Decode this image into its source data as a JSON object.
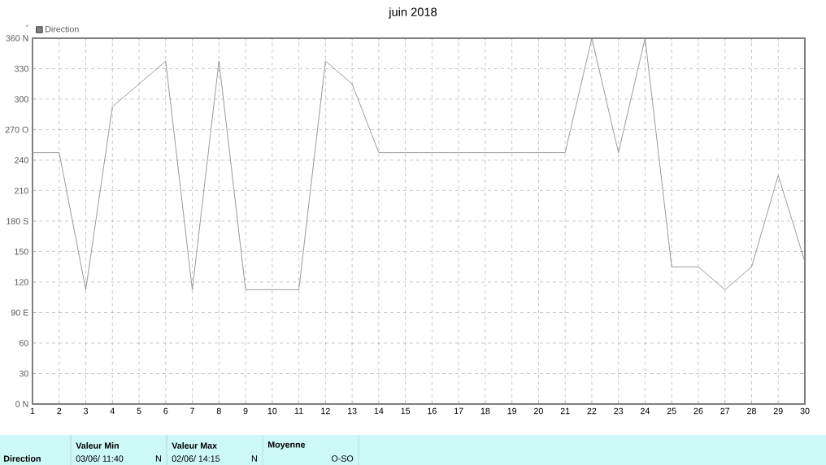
{
  "chart_data": {
    "type": "line",
    "title": "juin 2018",
    "ylabel": "°",
    "x": [
      1,
      2,
      3,
      4,
      5,
      6,
      7,
      8,
      9,
      10,
      11,
      12,
      13,
      14,
      15,
      16,
      17,
      18,
      19,
      20,
      21,
      22,
      23,
      24,
      25,
      26,
      27,
      28,
      29,
      30
    ],
    "series": [
      {
        "name": "Direction",
        "color": "#808080",
        "values": [
          247.5,
          247.5,
          112.5,
          292.5,
          315,
          337.5,
          112.5,
          337.5,
          112.5,
          112.5,
          112.5,
          337.5,
          315,
          247.5,
          247.5,
          247.5,
          247.5,
          247.5,
          247.5,
          247.5,
          247.5,
          360,
          247.5,
          360,
          135,
          135,
          112.5,
          135,
          225,
          140
        ]
      }
    ],
    "xlim": [
      1,
      30
    ],
    "xticks": [
      1,
      2,
      3,
      4,
      5,
      6,
      7,
      8,
      9,
      10,
      11,
      12,
      13,
      14,
      15,
      16,
      17,
      18,
      19,
      20,
      21,
      22,
      23,
      24,
      25,
      26,
      27,
      28,
      29,
      30
    ],
    "ylim": [
      0,
      360
    ],
    "yticks": [
      {
        "value": 0,
        "label": "0   N"
      },
      30,
      60,
      {
        "value": 90,
        "label": "90  E"
      },
      120,
      150,
      {
        "value": 180,
        "label": "180 S"
      },
      210,
      240,
      {
        "value": 270,
        "label": "270 O"
      },
      300,
      330,
      {
        "value": 360,
        "label": "360 N"
      }
    ],
    "grid": true,
    "legend": "top left",
    "annotations": [
      "Direction",
      "Valeur Min",
      "03/06/ 11:40",
      "N",
      "Valeur Max",
      "02/06/ 14:15",
      "N",
      "Moyenne",
      "O-SO"
    ]
  }
}
